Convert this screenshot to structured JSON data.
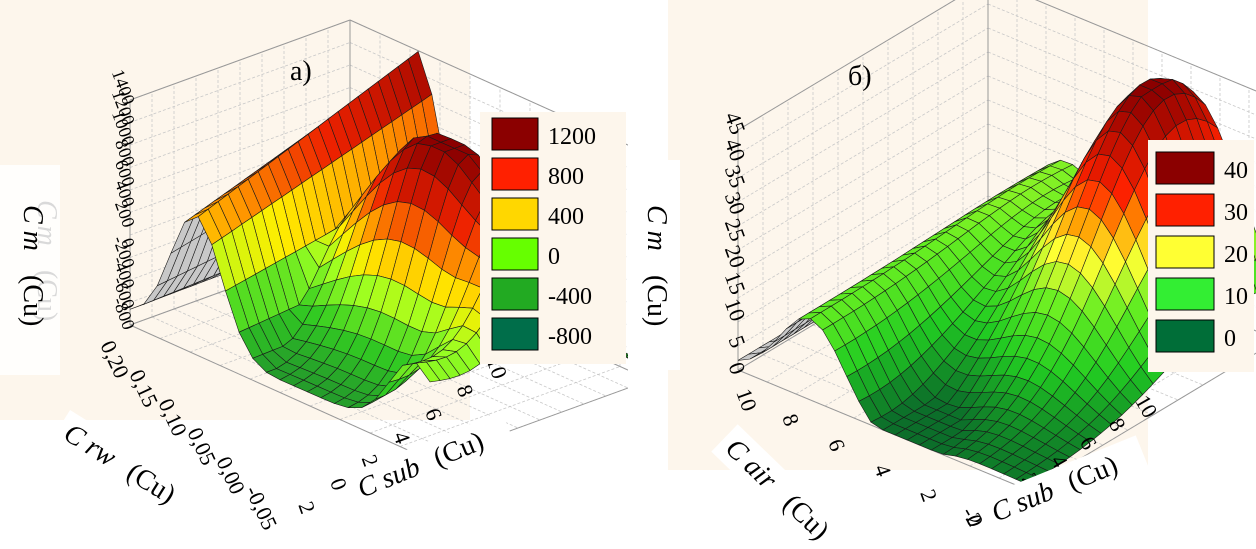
{
  "chart_data": [
    {
      "type": "surface",
      "panel_label": "а)",
      "zlabel_italic": "C m",
      "zlabel_unit": "(Cu)",
      "xlabel_italic": "C sub",
      "xlabel_unit": "(Cu)",
      "ylabel_italic": "C rw",
      "ylabel_unit": "(Cu)",
      "x_ticks": [
        "2",
        "0",
        "2",
        "4",
        "6",
        "8",
        "10"
      ],
      "y_ticks": [
        "0,20",
        "0,15",
        "0,10",
        "0,05",
        "0,00",
        "-0,05"
      ],
      "z_ticks": [
        "1400",
        "1200",
        "1000",
        "800",
        "600",
        "400",
        "200",
        "0",
        "-200",
        "-400",
        "-600",
        "-800"
      ],
      "legend": [
        {
          "label": "1200",
          "color": "#8b0000"
        },
        {
          "label": "800",
          "color": "#ff2000"
        },
        {
          "label": "400",
          "color": "#ffd700"
        },
        {
          "label": "0",
          "color": "#66ff00"
        },
        {
          "label": "-400",
          "color": "#22aa22"
        },
        {
          "label": "-800",
          "color": "#006e4a"
        }
      ],
      "zlim": [
        -800,
        1400
      ],
      "xlim": [
        0,
        10
      ]
    },
    {
      "type": "surface",
      "panel_label": "б)",
      "zlabel_italic": "C m",
      "zlabel_unit": "(Cu)",
      "xlabel_italic": "C sub",
      "xlabel_unit": "(Cu)",
      "ylabel_italic": "C air",
      "ylabel_unit": "(Cu)",
      "x_ticks": [
        "-2",
        "0",
        "2",
        "4",
        "6",
        "8",
        "10"
      ],
      "y_ticks": [
        "10",
        "8",
        "6",
        "4",
        "2",
        "0"
      ],
      "z_ticks": [
        "45",
        "40",
        "35",
        "30",
        "25",
        "20",
        "15",
        "10",
        "5",
        "0"
      ],
      "legend": [
        {
          "label": "40",
          "color": "#8b0000"
        },
        {
          "label": "30",
          "color": "#ff2000"
        },
        {
          "label": "20",
          "color": "#ffff33"
        },
        {
          "label": "10",
          "color": "#33ee33"
        },
        {
          "label": "0",
          "color": "#006e38"
        }
      ],
      "zlim": [
        0,
        45
      ],
      "xlim": [
        -2,
        10
      ]
    }
  ]
}
